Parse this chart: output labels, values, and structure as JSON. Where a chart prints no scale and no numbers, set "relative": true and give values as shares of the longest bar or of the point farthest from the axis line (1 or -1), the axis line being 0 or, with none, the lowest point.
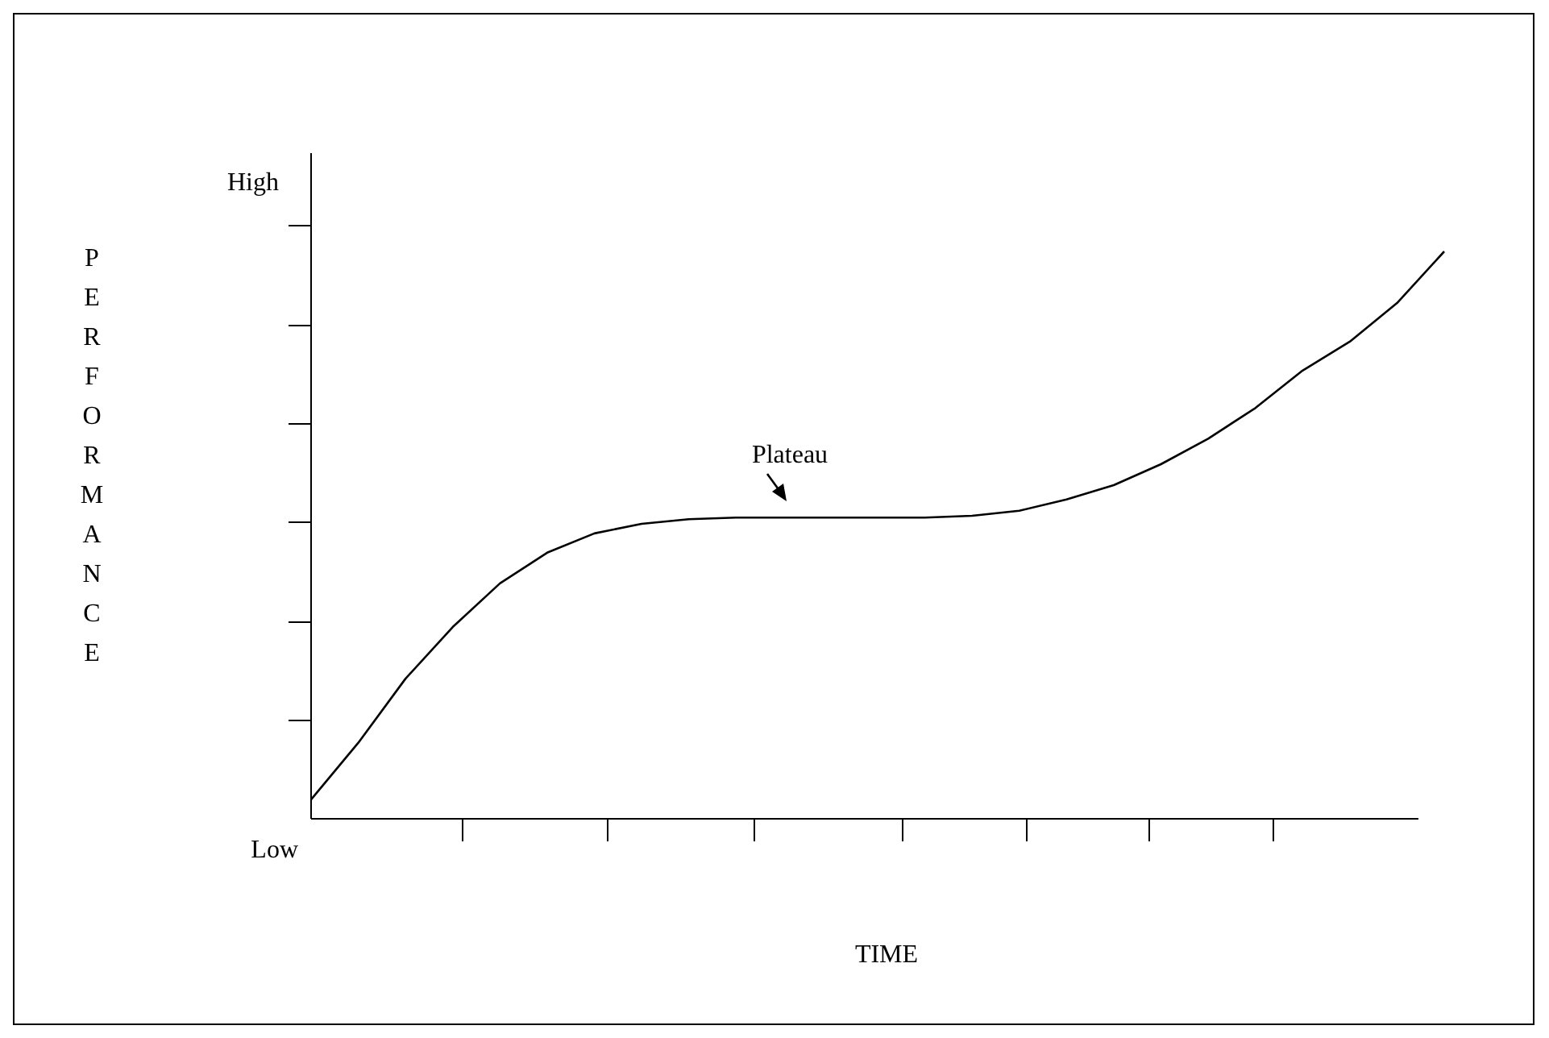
{
  "chart_data": {
    "type": "line",
    "xlabel": "TIME",
    "ylabel": "PERFORMANCE",
    "relative": true,
    "categories": [
      null,
      null,
      null,
      null,
      null,
      null,
      null,
      null,
      null,
      null,
      null,
      null,
      null,
      null,
      null,
      null,
      null,
      null,
      null,
      null,
      null,
      null,
      null,
      null,
      null
    ],
    "series": [
      {
        "color": "#000000",
        "values": [
          0.034,
          0.134,
          0.247,
          0.338,
          0.415,
          0.469,
          0.503,
          0.52,
          0.528,
          0.531,
          0.531,
          0.531,
          0.531,
          0.531,
          0.534,
          0.543,
          0.563,
          0.588,
          0.625,
          0.67,
          0.724,
          0.79,
          0.841,
          0.909,
          1
        ]
      }
    ],
    "annotations": [
      "High",
      "Low",
      "Plateau"
    ],
    "line_style": "solid"
  }
}
